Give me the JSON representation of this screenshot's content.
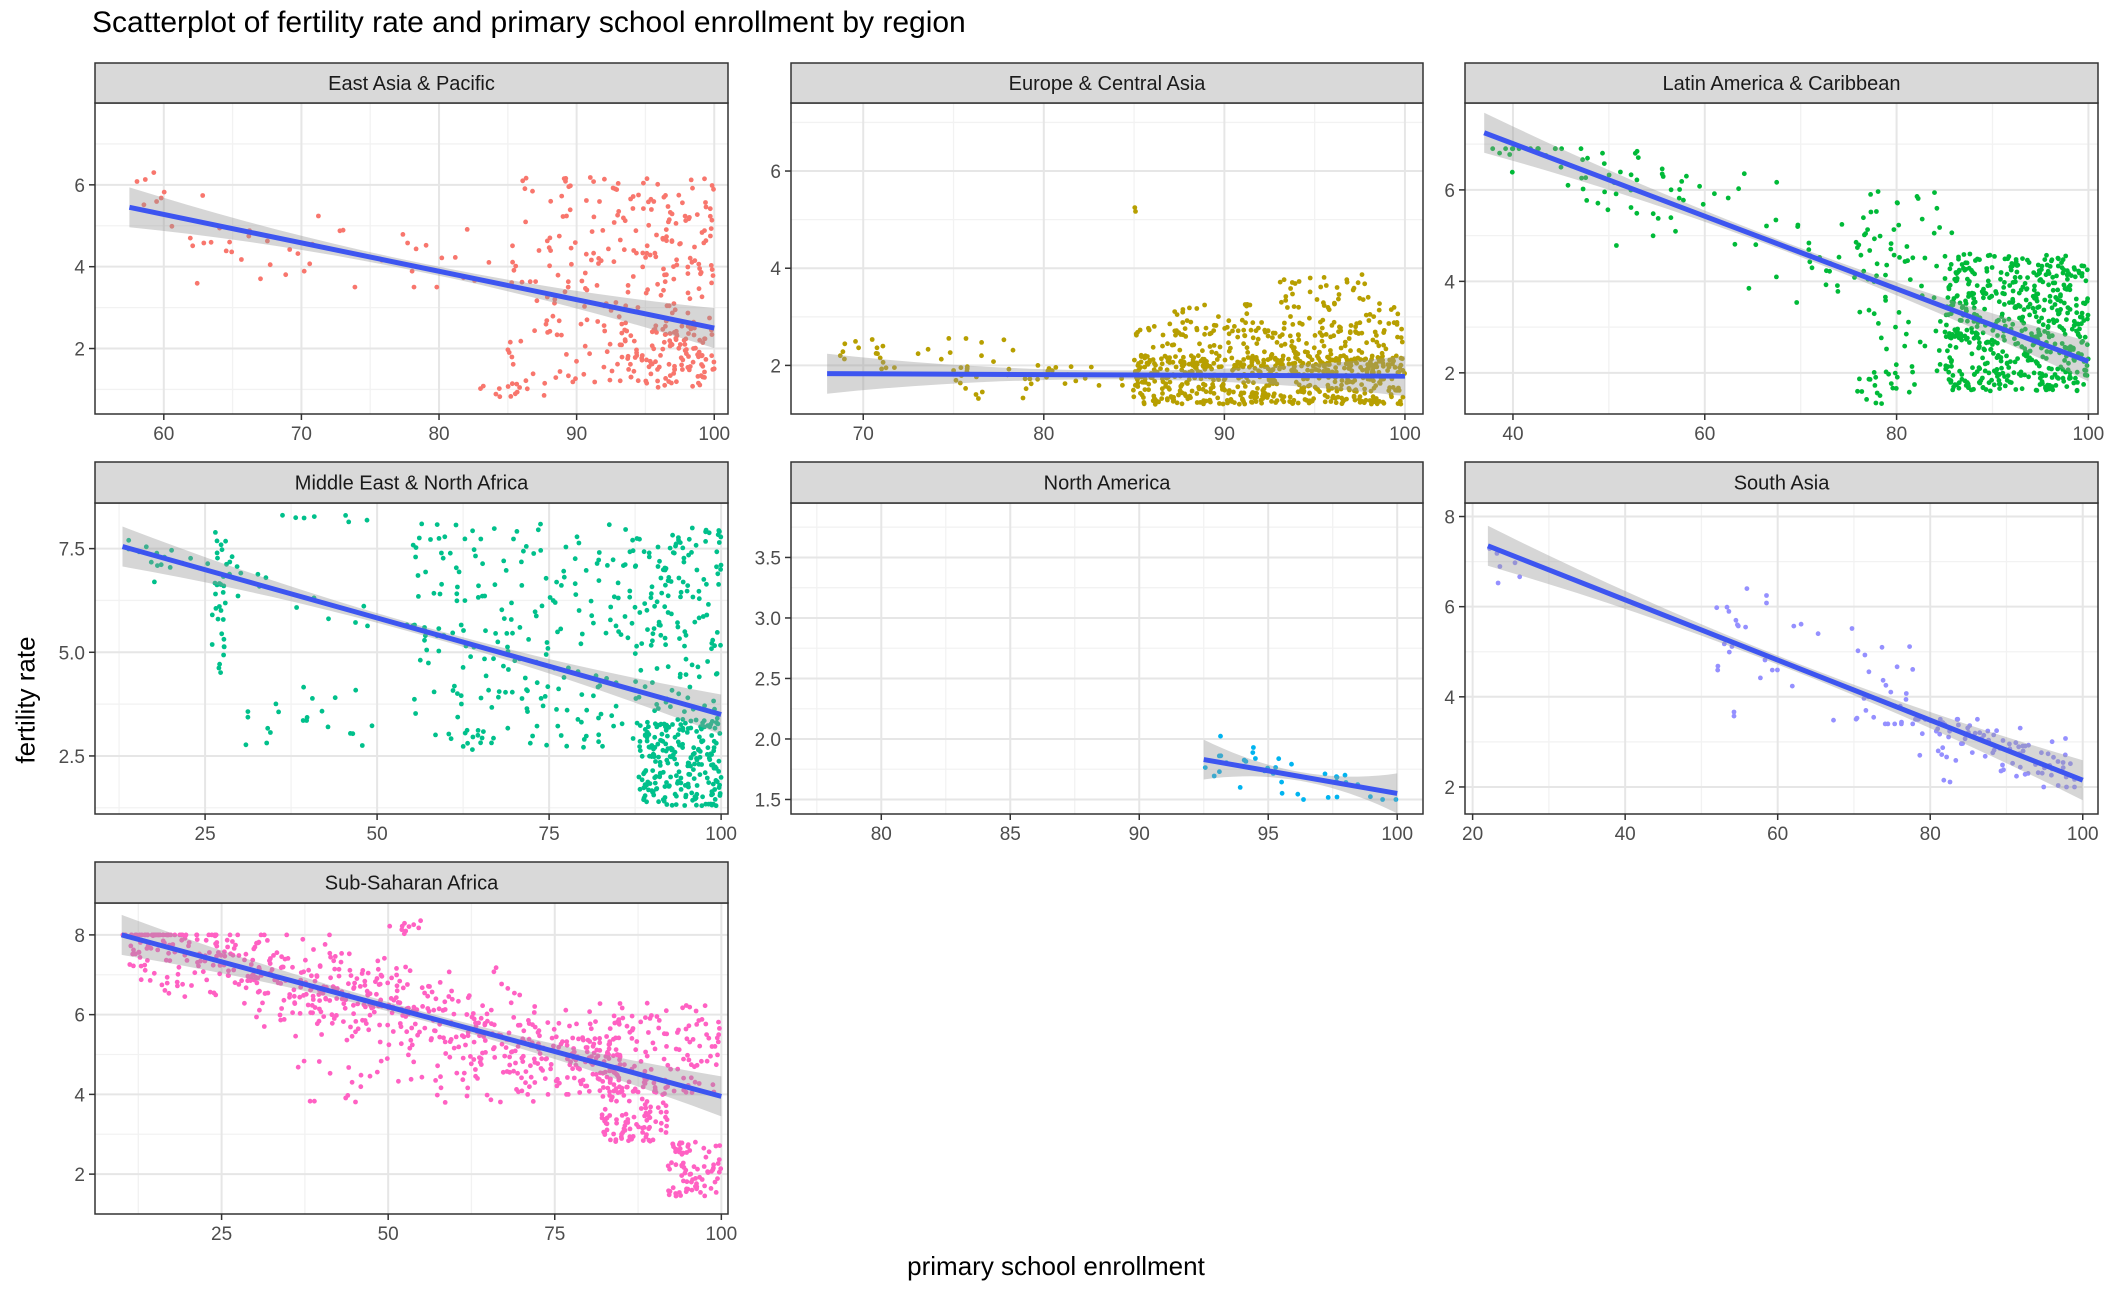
{
  "chart_data": {
    "type": "scatter",
    "title": "Scatterplot of fertility rate and primary school enrollment by region",
    "xlabel": "primary school enrollment",
    "ylabel": "fertility rate",
    "grid": true,
    "legend": "none",
    "trend_color": "#3d55f0",
    "panels": [
      {
        "name": "East Asia & Pacific",
        "color": "#F8766D",
        "xlim": [
          55,
          101
        ],
        "ylim": [
          0.4,
          8.0
        ],
        "xticks": [
          60,
          70,
          80,
          90,
          100
        ],
        "yticks": [
          2,
          4,
          6
        ],
        "ytick_labels": [
          "2",
          "4",
          "6"
        ],
        "trend": {
          "x0": 57.5,
          "y0": 5.45,
          "x1": 100,
          "y1": 2.5
        },
        "seed": 11,
        "n": 420,
        "clusters": [
          {
            "x": [
              57,
              90
            ],
            "y": [
              3.5,
              6.3
            ],
            "w": 0.12,
            "follow": true,
            "sd": 0.6
          },
          {
            "x": [
              85,
              100
            ],
            "y": [
              1.0,
              6.2
            ],
            "w": 0.55,
            "follow": false
          },
          {
            "x": [
              93,
              100
            ],
            "y": [
              1.0,
              2.6
            ],
            "w": 0.22,
            "follow": false
          },
          {
            "x": [
              83,
              88
            ],
            "y": [
              0.8,
              1.4
            ],
            "w": 0.03,
            "follow": false
          },
          {
            "x": [
              95,
              100
            ],
            "y": [
              3.5,
              5.5
            ],
            "w": 0.08,
            "follow": false
          }
        ]
      },
      {
        "name": "Europe & Central Asia",
        "color": "#B79F00",
        "xlim": [
          66,
          101
        ],
        "ylim": [
          1.0,
          7.4
        ],
        "xticks": [
          70,
          80,
          90,
          100
        ],
        "yticks": [
          2,
          4,
          6
        ],
        "ytick_labels": [
          "2",
          "4",
          "6"
        ],
        "trend": {
          "x0": 68,
          "y0": 1.83,
          "x1": 100,
          "y1": 1.78
        },
        "seed": 23,
        "n": 900,
        "clusters": [
          {
            "x": [
              68,
              80
            ],
            "y": [
              1.9,
              2.6
            ],
            "w": 0.03,
            "follow": false
          },
          {
            "x": [
              75,
              85
            ],
            "y": [
              1.3,
              2.0
            ],
            "w": 0.04,
            "follow": false
          },
          {
            "x": [
              85,
              100
            ],
            "y": [
              1.2,
              2.2
            ],
            "w": 0.6,
            "follow": false
          },
          {
            "x": [
              85,
              100
            ],
            "y": [
              2.0,
              2.9
            ],
            "w": 0.2,
            "follow": false
          },
          {
            "x": [
              87,
              100
            ],
            "y": [
              2.6,
              3.3
            ],
            "w": 0.07,
            "follow": false
          },
          {
            "x": [
              93,
              98
            ],
            "y": [
              3.3,
              3.9
            ],
            "w": 0.03,
            "follow": false
          },
          {
            "x": [
              84.9,
              85.1
            ],
            "y": [
              5.15,
              5.25
            ],
            "w": 0.002,
            "follow": false
          }
        ]
      },
      {
        "name": "Latin America & Caribbean",
        "color": "#00BA38",
        "xlim": [
          35,
          101
        ],
        "ylim": [
          1.1,
          7.9
        ],
        "xticks": [
          40,
          60,
          80,
          100
        ],
        "yticks": [
          2,
          4,
          6
        ],
        "ytick_labels": [
          "2",
          "4",
          "6"
        ],
        "trend": {
          "x0": 37,
          "y0": 7.25,
          "x1": 100,
          "y1": 2.25
        },
        "seed": 37,
        "n": 760,
        "clusters": [
          {
            "x": [
              37,
              80
            ],
            "y": [
              3.0,
              6.9
            ],
            "w": 0.12,
            "follow": true,
            "sd": 0.55
          },
          {
            "x": [
              75,
              86
            ],
            "y": [
              2.0,
              6.0
            ],
            "w": 0.08,
            "follow": false
          },
          {
            "x": [
              85,
              100
            ],
            "y": [
              1.6,
              4.6
            ],
            "w": 0.7,
            "follow": false
          },
          {
            "x": [
              75,
              82
            ],
            "y": [
              1.3,
              2.2
            ],
            "w": 0.03,
            "follow": false
          }
        ]
      },
      {
        "name": "Middle East & North Africa",
        "color": "#00C08B",
        "xlim": [
          9,
          101
        ],
        "ylim": [
          1.1,
          8.6
        ],
        "xticks": [
          25,
          50,
          75,
          100
        ],
        "yticks": [
          2.5,
          5.0,
          7.5
        ],
        "ytick_labels": [
          "2.5",
          "5.0",
          "7.5"
        ],
        "trend": {
          "x0": 13,
          "y0": 7.55,
          "x1": 100,
          "y1": 3.5
        },
        "seed": 41,
        "n": 700,
        "clusters": [
          {
            "x": [
              26,
              28
            ],
            "y": [
              4.5,
              7.9
            ],
            "w": 0.04,
            "follow": false
          },
          {
            "x": [
              13,
              60
            ],
            "y": [
              5.4,
              7.7
            ],
            "w": 0.06,
            "follow": true,
            "sd": 0.25
          },
          {
            "x": [
              30,
              50
            ],
            "y": [
              2.6,
              4.2
            ],
            "w": 0.03,
            "follow": false
          },
          {
            "x": [
              35,
              50
            ],
            "y": [
              8.1,
              8.4
            ],
            "w": 0.01,
            "follow": false
          },
          {
            "x": [
              55,
              100
            ],
            "y": [
              2.6,
              8.1
            ],
            "w": 0.45,
            "follow": false
          },
          {
            "x": [
              88,
              100
            ],
            "y": [
              1.3,
              3.4
            ],
            "w": 0.33,
            "follow": false
          },
          {
            "x": [
              85,
              100
            ],
            "y": [
              5.0,
              8.0
            ],
            "w": 0.08,
            "follow": false
          }
        ]
      },
      {
        "name": "North America",
        "color": "#00B4F0",
        "xlim": [
          76.5,
          101
        ],
        "ylim": [
          1.38,
          3.95
        ],
        "xticks": [
          80,
          85,
          90,
          95,
          100
        ],
        "yticks": [
          1.5,
          2.0,
          2.5,
          3.0,
          3.5
        ],
        "ytick_labels": [
          "1.5",
          "2.0",
          "2.5",
          "3.0",
          "3.5"
        ],
        "trend": {
          "x0": 92.5,
          "y0": 1.83,
          "x1": 100,
          "y1": 1.55
        },
        "seed": 53,
        "n": 38,
        "clusters": [
          {
            "x": [
              92.5,
              100
            ],
            "y": [
              1.5,
              2.05
            ],
            "w": 1.0,
            "follow": true,
            "sd": 0.1
          }
        ]
      },
      {
        "name": "South Asia",
        "color": "#9590FF",
        "xlim": [
          19,
          102
        ],
        "ylim": [
          1.4,
          8.3
        ],
        "xticks": [
          20,
          40,
          60,
          80,
          100
        ],
        "yticks": [
          2,
          4,
          6,
          8
        ],
        "ytick_labels": [
          "2",
          "4",
          "6",
          "8"
        ],
        "trend": {
          "x0": 22,
          "y0": 7.35,
          "x1": 100,
          "y1": 2.15
        },
        "seed": 67,
        "n": 150,
        "clusters": [
          {
            "x": [
              22,
              28
            ],
            "y": [
              6.5,
              7.6
            ],
            "w": 0.04,
            "follow": false
          },
          {
            "x": [
              52,
              78
            ],
            "y": [
              3.4,
              6.9
            ],
            "w": 0.35,
            "follow": true,
            "sd": 0.8
          },
          {
            "x": [
              78,
              100
            ],
            "y": [
              2.0,
              3.5
            ],
            "w": 0.55,
            "follow": true,
            "sd": 0.3
          },
          {
            "x": [
              80,
              90
            ],
            "y": [
              2.0,
              3.2
            ],
            "w": 0.06,
            "follow": false
          }
        ]
      },
      {
        "name": "Sub-Saharan Africa",
        "color": "#FF61C3",
        "xlim": [
          6,
          101
        ],
        "ylim": [
          1.0,
          8.8
        ],
        "xticks": [
          25,
          50,
          75,
          100
        ],
        "yticks": [
          2,
          4,
          6,
          8
        ],
        "ytick_labels": [
          "2",
          "4",
          "6",
          "8"
        ],
        "trend": {
          "x0": 10,
          "y0": 8.0,
          "x1": 100,
          "y1": 3.95
        },
        "seed": 79,
        "n": 1000,
        "clusters": [
          {
            "x": [
              10,
              85
            ],
            "y": [
              4.0,
              8.0
            ],
            "w": 0.62,
            "follow": true,
            "sd": 0.55
          },
          {
            "x": [
              50,
              57
            ],
            "y": [
              8.0,
              8.45
            ],
            "w": 0.01,
            "follow": false
          },
          {
            "x": [
              80,
              100
            ],
            "y": [
              4.0,
              6.3
            ],
            "w": 0.14,
            "follow": false
          },
          {
            "x": [
              82,
              92
            ],
            "y": [
              2.8,
              4.2
            ],
            "w": 0.1,
            "follow": false
          },
          {
            "x": [
              92,
              100
            ],
            "y": [
              1.4,
              2.8
            ],
            "w": 0.08,
            "follow": false
          },
          {
            "x": [
              35,
              75
            ],
            "y": [
              3.8,
              5.0
            ],
            "w": 0.05,
            "follow": false
          }
        ]
      }
    ]
  }
}
